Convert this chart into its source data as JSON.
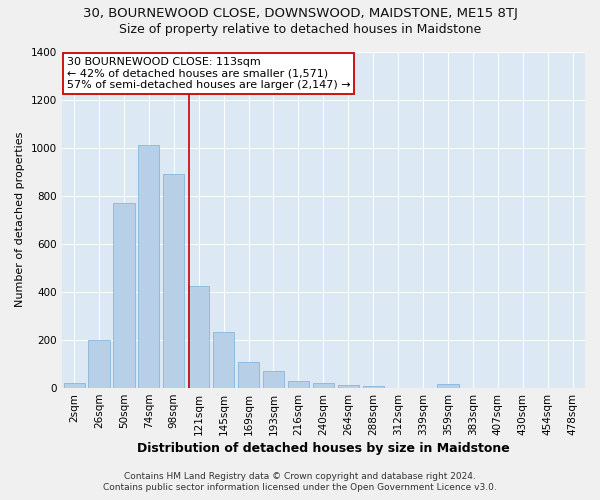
{
  "title": "30, BOURNEWOOD CLOSE, DOWNSWOOD, MAIDSTONE, ME15 8TJ",
  "subtitle": "Size of property relative to detached houses in Maidstone",
  "xlabel": "Distribution of detached houses by size in Maidstone",
  "ylabel": "Number of detached properties",
  "categories": [
    "2sqm",
    "26sqm",
    "50sqm",
    "74sqm",
    "98sqm",
    "121sqm",
    "145sqm",
    "169sqm",
    "193sqm",
    "216sqm",
    "240sqm",
    "264sqm",
    "288sqm",
    "312sqm",
    "339sqm",
    "359sqm",
    "383sqm",
    "407sqm",
    "430sqm",
    "454sqm",
    "478sqm"
  ],
  "values": [
    22,
    200,
    770,
    1010,
    890,
    425,
    235,
    110,
    70,
    28,
    22,
    12,
    10,
    0,
    0,
    15,
    0,
    0,
    0,
    0,
    0
  ],
  "bar_color": "#b8cfe8",
  "bar_edge_color": "#7aafd4",
  "vline_color": "#cc0000",
  "annotation_line1": "30 BOURNEWOOD CLOSE: 113sqm",
  "annotation_line2": "← 42% of detached houses are smaller (1,571)",
  "annotation_line3": "57% of semi-detached houses are larger (2,147) →",
  "annotation_box_color": "#cc0000",
  "ylim": [
    0,
    1400
  ],
  "yticks": [
    0,
    200,
    400,
    600,
    800,
    1000,
    1200,
    1400
  ],
  "footer_line1": "Contains HM Land Registry data © Crown copyright and database right 2024.",
  "footer_line2": "Contains public sector information licensed under the Open Government Licence v3.0.",
  "fig_bg_color": "#f0f0f0",
  "plot_bg_color": "#dce9f5",
  "grid_color": "#ffffff",
  "title_fontsize": 9.5,
  "subtitle_fontsize": 9,
  "xlabel_fontsize": 9,
  "ylabel_fontsize": 8,
  "tick_fontsize": 7.5,
  "annotation_fontsize": 8,
  "footer_fontsize": 6.5,
  "vline_x_index": 4.62
}
